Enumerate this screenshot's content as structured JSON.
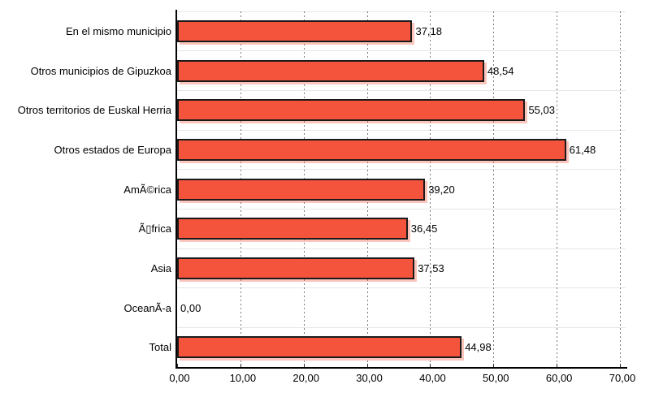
{
  "chart_data": {
    "type": "bar",
    "orientation": "horizontal",
    "title": "",
    "xlabel": "",
    "ylabel": "",
    "legend": "none",
    "grid": "vertical-dashed and faint horizontal row separators",
    "categories": [
      "En el mismo municipio",
      "Otros municipios de Gipuzkoa",
      "Otros territorios de Euskal Herria",
      "Otros estados de Europa",
      "AmÃ©rica",
      "Ã▯frica",
      "Asia",
      "OceanÃ-a",
      "Total"
    ],
    "values": [
      37.18,
      48.54,
      55.03,
      61.48,
      39.2,
      36.45,
      37.53,
      0.0,
      44.98
    ],
    "value_labels": [
      "37,18",
      "48,54",
      "55,03",
      "61,48",
      "39,20",
      "36,45",
      "37,53",
      "0,00",
      "44,98"
    ],
    "xlim": [
      0,
      70
    ],
    "x_ticks": [
      0,
      10,
      20,
      30,
      40,
      50,
      60,
      70
    ],
    "x_tick_labels": [
      "0,00",
      "10,00",
      "20,00",
      "30,00",
      "40,00",
      "50,00",
      "60,00",
      "70,00"
    ],
    "colors": {
      "bar_fill": "#F4533C",
      "bar_border": "#1A1A1A",
      "bar_shadow": "rgba(244,88,60,0.35)",
      "axis": "#000000",
      "gridline_dashed": "#7A7A7A",
      "gridline_faint": "#E7E7E7",
      "background": "#FFFFFF",
      "text": "#000000"
    }
  }
}
